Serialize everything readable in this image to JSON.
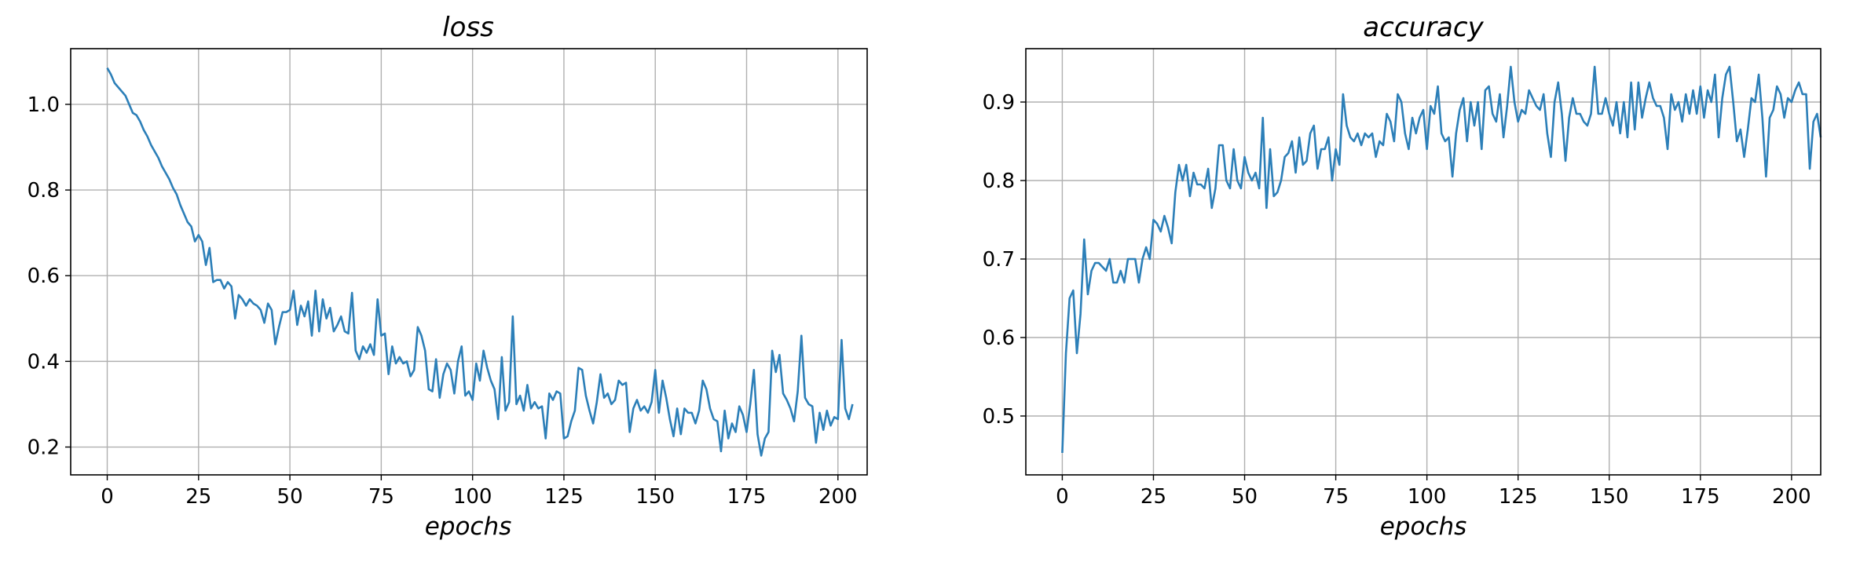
{
  "chart_data": [
    {
      "type": "line",
      "title": "loss",
      "xlabel": "epochs",
      "ylabel": "",
      "xlim": [
        -10,
        208
      ],
      "ylim": [
        0.135,
        1.13
      ],
      "xticks": [
        0,
        25,
        50,
        75,
        100,
        125,
        150,
        175,
        200
      ],
      "yticks": [
        0.2,
        0.4,
        0.6,
        0.8,
        1.0
      ],
      "ytick_labels": [
        "0.2",
        "0.4",
        "0.6",
        "0.8",
        "1.0"
      ],
      "grid": true,
      "color": "#2c7fb8",
      "series": [
        {
          "x_start": 0,
          "x_step": 1,
          "values": [
            1.085,
            1.07,
            1.05,
            1.04,
            1.03,
            1.02,
            1.0,
            0.98,
            0.975,
            0.96,
            0.94,
            0.925,
            0.905,
            0.89,
            0.875,
            0.855,
            0.84,
            0.825,
            0.805,
            0.79,
            0.765,
            0.745,
            0.725,
            0.715,
            0.68,
            0.695,
            0.68,
            0.625,
            0.665,
            0.585,
            0.59,
            0.59,
            0.57,
            0.585,
            0.575,
            0.5,
            0.555,
            0.545,
            0.53,
            0.545,
            0.535,
            0.53,
            0.52,
            0.49,
            0.535,
            0.52,
            0.44,
            0.48,
            0.515,
            0.515,
            0.52,
            0.565,
            0.485,
            0.53,
            0.505,
            0.54,
            0.46,
            0.565,
            0.47,
            0.545,
            0.5,
            0.525,
            0.47,
            0.485,
            0.505,
            0.47,
            0.465,
            0.56,
            0.425,
            0.405,
            0.435,
            0.42,
            0.44,
            0.415,
            0.545,
            0.46,
            0.465,
            0.37,
            0.435,
            0.395,
            0.41,
            0.395,
            0.4,
            0.365,
            0.38,
            0.48,
            0.46,
            0.425,
            0.335,
            0.33,
            0.405,
            0.315,
            0.37,
            0.395,
            0.38,
            0.325,
            0.4,
            0.435,
            0.32,
            0.33,
            0.31,
            0.395,
            0.355,
            0.425,
            0.385,
            0.355,
            0.335,
            0.265,
            0.41,
            0.285,
            0.305,
            0.505,
            0.3,
            0.32,
            0.285,
            0.345,
            0.29,
            0.305,
            0.29,
            0.295,
            0.22,
            0.325,
            0.31,
            0.33,
            0.325,
            0.22,
            0.225,
            0.26,
            0.285,
            0.385,
            0.38,
            0.32,
            0.285,
            0.255,
            0.305,
            0.37,
            0.315,
            0.325,
            0.3,
            0.31,
            0.355,
            0.345,
            0.35,
            0.235,
            0.29,
            0.31,
            0.285,
            0.295,
            0.28,
            0.305,
            0.38,
            0.28,
            0.355,
            0.315,
            0.265,
            0.225,
            0.29,
            0.23,
            0.29,
            0.28,
            0.28,
            0.255,
            0.285,
            0.355,
            0.335,
            0.29,
            0.265,
            0.26,
            0.19,
            0.285,
            0.22,
            0.255,
            0.235,
            0.295,
            0.275,
            0.235,
            0.3,
            0.38,
            0.23,
            0.18,
            0.22,
            0.235,
            0.425,
            0.375,
            0.415,
            0.325,
            0.31,
            0.29,
            0.26,
            0.33,
            0.46,
            0.315,
            0.3,
            0.295,
            0.21,
            0.28,
            0.24,
            0.285,
            0.25,
            0.27,
            0.265,
            0.45,
            0.29,
            0.265,
            0.3
          ]
        }
      ]
    },
    {
      "type": "line",
      "title": "accuracy",
      "xlabel": "epochs",
      "ylabel": "",
      "xlim": [
        -10,
        208
      ],
      "ylim": [
        0.425,
        0.968
      ],
      "xticks": [
        0,
        25,
        50,
        75,
        100,
        125,
        150,
        175,
        200
      ],
      "yticks": [
        0.5,
        0.6,
        0.7,
        0.8,
        0.9
      ],
      "ytick_labels": [
        "0.5",
        "0.6",
        "0.7",
        "0.8",
        "0.9"
      ],
      "grid": true,
      "color": "#2c7fb8",
      "series": [
        {
          "x_start": 0,
          "x_step": 1,
          "values": [
            0.453,
            0.58,
            0.65,
            0.66,
            0.58,
            0.63,
            0.725,
            0.655,
            0.685,
            0.695,
            0.695,
            0.69,
            0.685,
            0.7,
            0.67,
            0.67,
            0.685,
            0.67,
            0.7,
            0.7,
            0.7,
            0.67,
            0.7,
            0.715,
            0.7,
            0.75,
            0.745,
            0.735,
            0.755,
            0.74,
            0.72,
            0.785,
            0.82,
            0.8,
            0.82,
            0.78,
            0.81,
            0.795,
            0.795,
            0.79,
            0.815,
            0.765,
            0.79,
            0.845,
            0.845,
            0.8,
            0.79,
            0.84,
            0.8,
            0.79,
            0.83,
            0.81,
            0.8,
            0.81,
            0.79,
            0.88,
            0.765,
            0.84,
            0.78,
            0.785,
            0.8,
            0.83,
            0.835,
            0.85,
            0.81,
            0.855,
            0.82,
            0.825,
            0.86,
            0.87,
            0.815,
            0.84,
            0.84,
            0.855,
            0.8,
            0.84,
            0.82,
            0.91,
            0.87,
            0.855,
            0.85,
            0.86,
            0.845,
            0.86,
            0.855,
            0.86,
            0.83,
            0.85,
            0.845,
            0.885,
            0.875,
            0.85,
            0.91,
            0.9,
            0.86,
            0.84,
            0.88,
            0.86,
            0.88,
            0.89,
            0.84,
            0.895,
            0.885,
            0.92,
            0.86,
            0.85,
            0.855,
            0.805,
            0.86,
            0.89,
            0.905,
            0.85,
            0.9,
            0.87,
            0.9,
            0.84,
            0.915,
            0.92,
            0.885,
            0.875,
            0.91,
            0.855,
            0.895,
            0.945,
            0.9,
            0.875,
            0.89,
            0.885,
            0.915,
            0.905,
            0.895,
            0.89,
            0.91,
            0.86,
            0.83,
            0.9,
            0.925,
            0.885,
            0.825,
            0.88,
            0.905,
            0.885,
            0.885,
            0.875,
            0.87,
            0.885,
            0.945,
            0.885,
            0.885,
            0.905,
            0.885,
            0.87,
            0.9,
            0.86,
            0.9,
            0.855,
            0.925,
            0.865,
            0.925,
            0.88,
            0.905,
            0.925,
            0.905,
            0.895,
            0.895,
            0.88,
            0.84,
            0.91,
            0.89,
            0.9,
            0.875,
            0.91,
            0.885,
            0.915,
            0.885,
            0.92,
            0.88,
            0.915,
            0.9,
            0.935,
            0.855,
            0.905,
            0.935,
            0.945,
            0.9,
            0.85,
            0.865,
            0.83,
            0.865,
            0.905,
            0.9,
            0.935,
            0.88,
            0.805,
            0.88,
            0.89,
            0.92,
            0.91,
            0.88,
            0.905,
            0.9,
            0.915,
            0.925,
            0.91,
            0.91,
            0.815,
            0.875,
            0.885,
            0.855
          ]
        }
      ]
    }
  ]
}
